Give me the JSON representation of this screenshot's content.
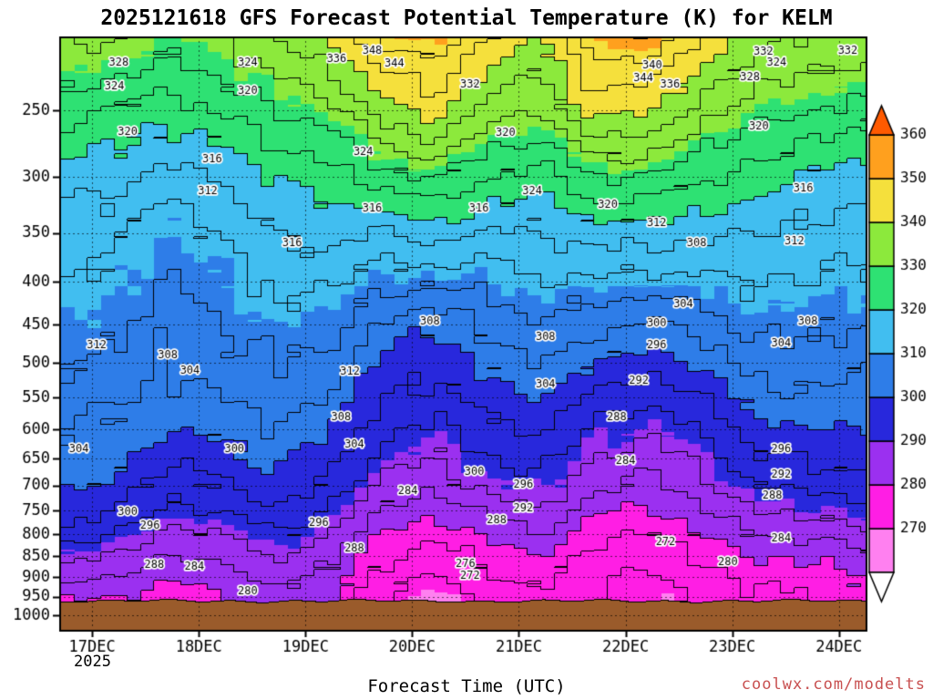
{
  "title": "2025121618 GFS Forecast Potential Temperature (K) for KELM",
  "xlabel": "Forecast Time (UTC)",
  "year_label": "2025",
  "watermark": "coolwx.com/modelts",
  "model": "GFS",
  "model_run": "2025121618",
  "station": "KELM",
  "variable": "Potential Temperature (K)",
  "colors": {
    "watermark": "#C85050",
    "terrain": "#9A5B2B",
    "contour_line": "#000000",
    "frame": "#000000"
  },
  "chart_data": {
    "type": "heatmap",
    "subtype": "filled-contour time-height cross-section",
    "title": "2025121618 GFS Forecast Potential Temperature (K) for KELM",
    "xlabel": "Forecast Time (UTC)",
    "ylabel": "pressure (hPa), log scale, inverted",
    "grid": "dotted at day and 50-hPa ticks",
    "xlim_hours": [
      0,
      181
    ],
    "ylim": [
      205,
      1040
    ],
    "contour_interval_k": 4,
    "fill_interval_k": 10,
    "x_start": "16DEC2025 18UTC",
    "x_ticks": [
      {
        "hour": 7,
        "label": "17DEC"
      },
      {
        "hour": 31,
        "label": "18DEC"
      },
      {
        "hour": 55,
        "label": "19DEC"
      },
      {
        "hour": 79,
        "label": "20DEC"
      },
      {
        "hour": 103,
        "label": "21DEC"
      },
      {
        "hour": 127,
        "label": "22DEC"
      },
      {
        "hour": 151,
        "label": "23DEC"
      },
      {
        "hour": 175,
        "label": "24DEC"
      }
    ],
    "y_ticks": [
      250,
      300,
      350,
      400,
      450,
      500,
      550,
      600,
      650,
      700,
      750,
      800,
      850,
      900,
      950,
      1000
    ],
    "pressure_levels_hpa": [
      205,
      250,
      300,
      350,
      400,
      450,
      500,
      550,
      600,
      650,
      700,
      750,
      800,
      850,
      900,
      950,
      1000
    ],
    "x_hours": [
      0,
      12,
      24,
      36,
      48,
      60,
      72,
      84,
      96,
      108,
      120,
      132,
      144,
      156,
      168,
      180
    ],
    "theta_grid_k": [
      [
        334,
        326,
        318,
        314,
        312,
        310,
        308,
        306,
        304,
        303,
        301,
        299,
        295,
        290,
        286,
        281,
        278
      ],
      [
        332,
        324,
        317,
        313,
        311,
        309,
        307,
        305,
        303,
        301,
        299,
        296,
        292,
        288,
        284,
        280,
        277
      ],
      [
        330,
        322,
        314,
        310,
        307,
        305,
        304,
        302,
        300,
        297,
        294,
        291,
        287,
        284,
        281,
        279,
        278
      ],
      [
        332,
        324,
        316,
        312,
        310,
        308,
        306,
        304,
        301,
        298,
        295,
        292,
        288,
        285,
        282,
        280,
        279
      ],
      [
        336,
        328,
        320,
        316,
        313,
        310,
        308,
        306,
        304,
        302,
        299,
        296,
        292,
        288,
        285,
        283,
        281
      ],
      [
        340,
        330,
        322,
        317,
        313,
        310,
        307,
        304,
        301,
        298,
        295,
        292,
        289,
        286,
        284,
        282,
        280
      ],
      [
        348,
        338,
        326,
        316,
        309,
        303,
        299,
        296,
        293,
        290,
        287,
        284,
        280,
        277,
        274,
        272,
        271
      ],
      [
        352,
        342,
        329,
        318,
        309,
        301,
        297,
        294,
        291,
        288,
        285,
        281,
        277,
        273,
        271,
        269,
        269
      ],
      [
        344,
        334,
        324,
        315,
        309,
        305,
        301,
        298,
        295,
        292,
        289,
        285,
        281,
        277,
        275,
        273,
        272
      ],
      [
        340,
        332,
        322,
        316,
        312,
        308,
        304,
        300,
        297,
        294,
        291,
        288,
        284,
        280,
        277,
        275,
        274
      ],
      [
        350,
        342,
        328,
        318,
        311,
        306,
        300,
        295,
        291,
        288,
        285,
        281,
        278,
        275,
        273,
        272,
        271
      ],
      [
        352,
        340,
        328,
        318,
        310,
        303,
        298,
        293,
        289,
        286,
        283,
        280,
        275,
        273,
        271,
        270,
        270
      ],
      [
        344,
        334,
        325,
        317,
        311,
        306,
        301,
        296,
        292,
        289,
        286,
        283,
        280,
        277,
        275,
        273,
        272
      ],
      [
        338,
        330,
        322,
        316,
        312,
        309,
        306,
        302,
        298,
        295,
        292,
        288,
        284,
        280,
        277,
        275,
        274
      ],
      [
        336,
        328,
        320,
        315,
        312,
        309,
        306,
        303,
        300,
        297,
        293,
        289,
        285,
        281,
        278,
        276,
        275
      ],
      [
        334,
        327,
        318,
        314,
        311,
        308,
        305,
        302,
        300,
        297,
        294,
        291,
        287,
        283,
        280,
        278,
        277
      ]
    ],
    "terrain": {
      "base_pressure_hpa": 962,
      "color": "#9A5B2B"
    },
    "colorbar": {
      "position": "right",
      "tick_labels": [
        "360",
        "350",
        "340",
        "330",
        "320",
        "310",
        "300",
        "290",
        "280",
        "270"
      ],
      "tick_values": [
        360,
        350,
        340,
        330,
        320,
        310,
        300,
        290,
        280,
        270
      ],
      "thresholds": [
        260,
        270,
        280,
        290,
        300,
        310,
        320,
        330,
        340,
        350,
        360
      ],
      "colors": [
        "#FFFFFF",
        "#FF80F0",
        "#FF1EE4",
        "#9B30F0",
        "#2828DC",
        "#2E7DE8",
        "#41BEF0",
        "#2EE173",
        "#8CE93C",
        "#F5E03C",
        "#FFA01E",
        "#FF5A00"
      ]
    },
    "contour_labels": [
      [
        328,
        13,
        219
      ],
      [
        324,
        12,
        234
      ],
      [
        320,
        15,
        265
      ],
      [
        312,
        8,
        476
      ],
      [
        304,
        4,
        633
      ],
      [
        300,
        15,
        752
      ],
      [
        296,
        20,
        781
      ],
      [
        288,
        21,
        871
      ],
      [
        284,
        30,
        875
      ],
      [
        316,
        34,
        286
      ],
      [
        312,
        33,
        312
      ],
      [
        308,
        24,
        490
      ],
      [
        304,
        29,
        511
      ],
      [
        280,
        42,
        937
      ],
      [
        324,
        42,
        219
      ],
      [
        320,
        42,
        237
      ],
      [
        300,
        39,
        633
      ],
      [
        316,
        52,
        360
      ],
      [
        312,
        65,
        512
      ],
      [
        308,
        63,
        580
      ],
      [
        304,
        66,
        626
      ],
      [
        296,
        58,
        775
      ],
      [
        288,
        66,
        833
      ],
      [
        336,
        62,
        217
      ],
      [
        348,
        70,
        212
      ],
      [
        344,
        75,
        220
      ],
      [
        324,
        68,
        280
      ],
      [
        316,
        70,
        327
      ],
      [
        332,
        92,
        233
      ],
      [
        320,
        100,
        266
      ],
      [
        316,
        94,
        327
      ],
      [
        308,
        83,
        446
      ],
      [
        284,
        78,
        710
      ],
      [
        276,
        91,
        869
      ],
      [
        272,
        92,
        896
      ],
      [
        300,
        93,
        674
      ],
      [
        288,
        98,
        770
      ],
      [
        292,
        104,
        746
      ],
      [
        296,
        104,
        698
      ],
      [
        304,
        109,
        531
      ],
      [
        308,
        109,
        466
      ],
      [
        324,
        106,
        312
      ],
      [
        320,
        123,
        324
      ],
      [
        344,
        131,
        229
      ],
      [
        340,
        133,
        221
      ],
      [
        336,
        137,
        233
      ],
      [
        312,
        134,
        341
      ],
      [
        292,
        130,
        525
      ],
      [
        288,
        125,
        580
      ],
      [
        284,
        127,
        655
      ],
      [
        272,
        136,
        817
      ],
      [
        296,
        134,
        476
      ],
      [
        300,
        134,
        448
      ],
      [
        304,
        140,
        426
      ],
      [
        308,
        143,
        360
      ],
      [
        280,
        150,
        864
      ],
      [
        284,
        162,
        809
      ],
      [
        288,
        160,
        720
      ],
      [
        292,
        162,
        679
      ],
      [
        296,
        162,
        634
      ],
      [
        304,
        162,
        474
      ],
      [
        308,
        168,
        446
      ],
      [
        312,
        165,
        358
      ],
      [
        316,
        167,
        310
      ],
      [
        320,
        157,
        261
      ],
      [
        328,
        155,
        228
      ],
      [
        332,
        158,
        213
      ],
      [
        324,
        161,
        219
      ],
      [
        332,
        177,
        212
      ]
    ]
  }
}
